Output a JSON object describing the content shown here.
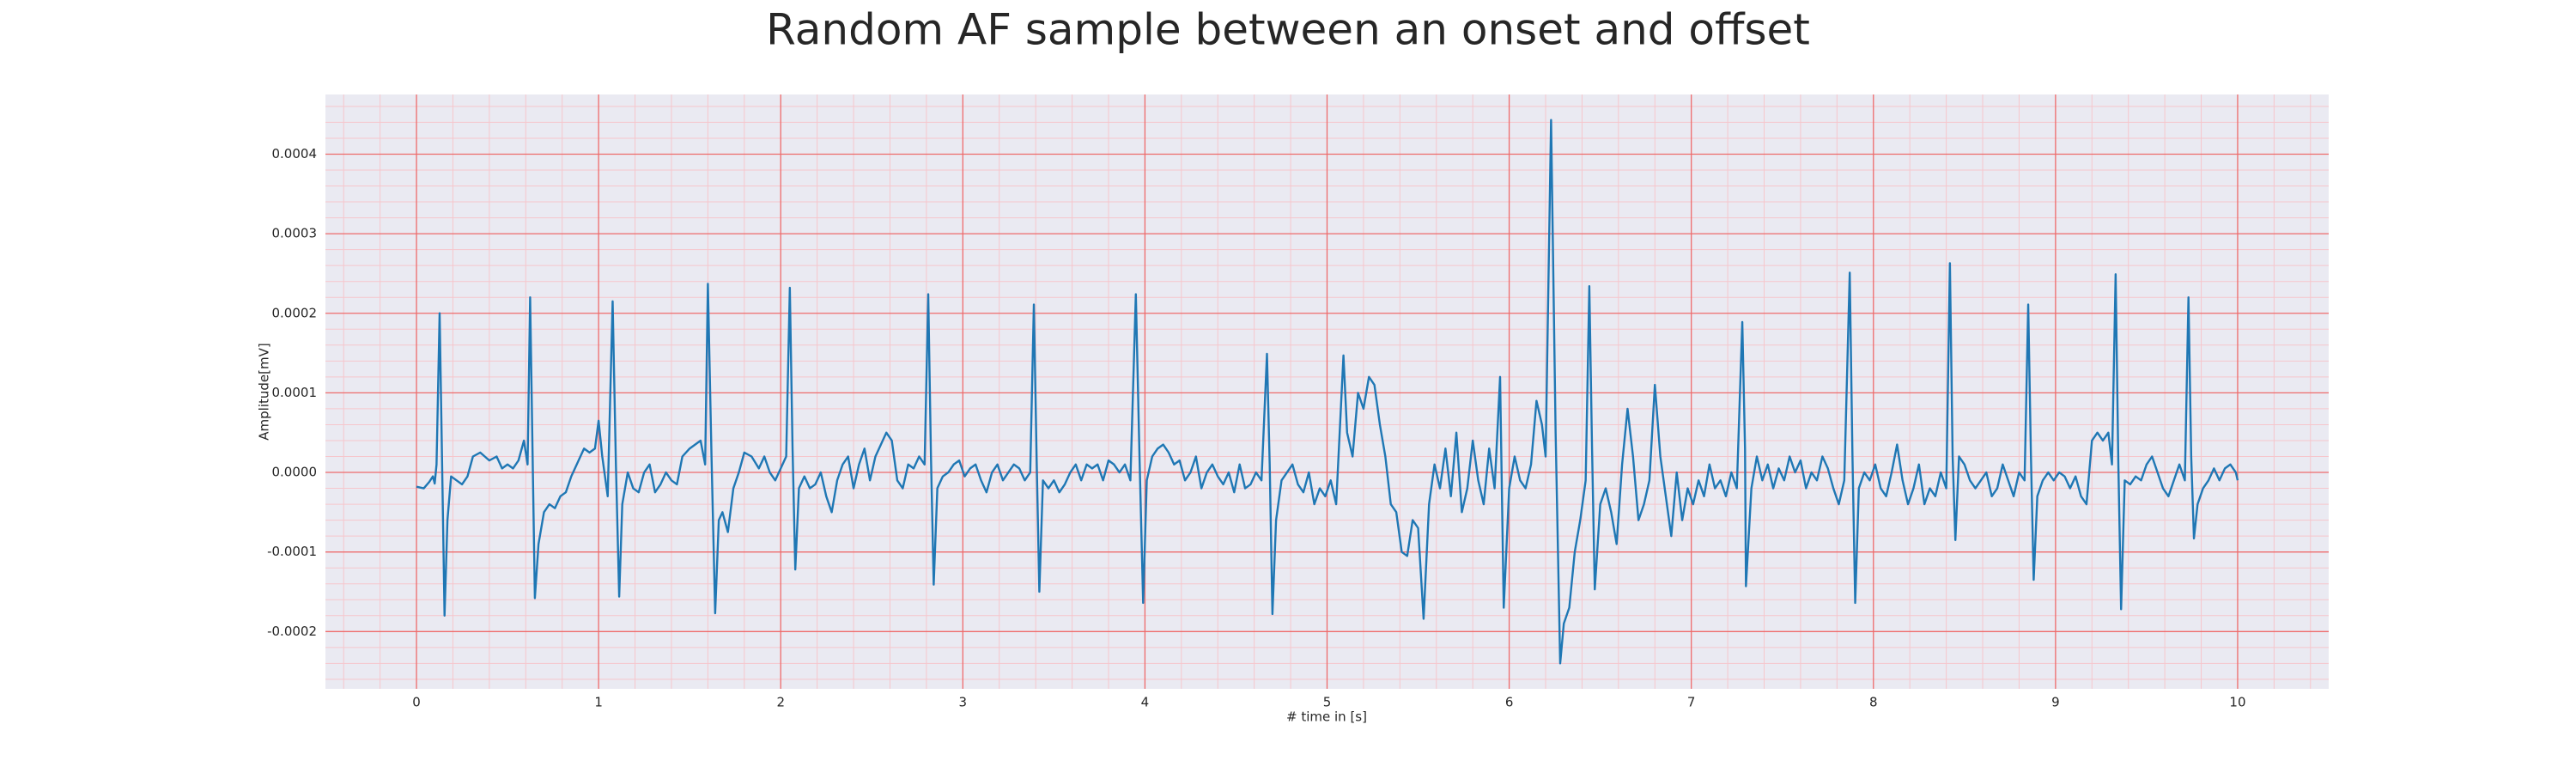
{
  "chart_data": {
    "type": "line",
    "title": "Random AF sample between an onset and offset",
    "xlabel": "# time in [s]",
    "ylabel": "Amplitude[mV]",
    "xlim": [
      -0.5,
      10.5
    ],
    "ylim": [
      -0.000272,
      0.000475
    ],
    "xticks": [
      0,
      1,
      2,
      3,
      4,
      5,
      6,
      7,
      8,
      9,
      10
    ],
    "yticks": [
      -0.0002,
      -0.0001,
      {
        "value": 0,
        "label": "0.0000"
      },
      0.0001,
      0.0002,
      0.0003,
      0.0004
    ],
    "minor_xticks": [
      -0.4,
      -0.2,
      0.2,
      0.4,
      0.6,
      0.8,
      1.2,
      1.4,
      1.6,
      1.8,
      2.2,
      2.4,
      2.6,
      2.8,
      3.2,
      3.4,
      3.6,
      3.8,
      4.2,
      4.4,
      4.6,
      4.8,
      5.2,
      5.4,
      5.6,
      5.8,
      6.2,
      6.4,
      6.6,
      6.8,
      7.2,
      7.4,
      7.6,
      7.8,
      8.2,
      8.4,
      8.6,
      8.8,
      9.2,
      9.4,
      9.6,
      9.8,
      10.2,
      10.4
    ],
    "minor_yticks": [
      -0.00026,
      -0.00024,
      -0.00022,
      -0.00018,
      -0.00016,
      -0.00014,
      -0.00012,
      -8e-05,
      -6e-05,
      -4e-05,
      -2e-05,
      2e-05,
      4e-05,
      6e-05,
      8e-05,
      0.00012,
      0.00014,
      0.00016,
      0.00018,
      0.00022,
      0.00024,
      0.00026,
      0.00028,
      0.00032,
      0.00034,
      0.00036,
      0.00038,
      0.00042,
      0.00044,
      0.00046
    ],
    "grid": true,
    "series": [
      {
        "color": "#1f77b4",
        "x": [
          0.0,
          0.04,
          0.07,
          0.09,
          0.1,
          0.11,
          0.127,
          0.14,
          0.154,
          0.17,
          0.19,
          0.22,
          0.25,
          0.28,
          0.31,
          0.35,
          0.4,
          0.44,
          0.47,
          0.5,
          0.53,
          0.56,
          0.59,
          0.61,
          0.624,
          0.637,
          0.65,
          0.67,
          0.7,
          0.73,
          0.76,
          0.79,
          0.82,
          0.85,
          0.88,
          0.92,
          0.95,
          0.98,
          1.0,
          1.02,
          1.05,
          1.077,
          1.095,
          1.113,
          1.13,
          1.16,
          1.19,
          1.22,
          1.25,
          1.28,
          1.31,
          1.34,
          1.37,
          1.4,
          1.43,
          1.46,
          1.5,
          1.53,
          1.56,
          1.585,
          1.6,
          1.62,
          1.64,
          1.66,
          1.68,
          1.71,
          1.74,
          1.77,
          1.8,
          1.84,
          1.88,
          1.91,
          1.94,
          1.97,
          2.0,
          2.03,
          2.05,
          2.065,
          2.08,
          2.1,
          2.13,
          2.16,
          2.19,
          2.22,
          2.25,
          2.28,
          2.31,
          2.34,
          2.37,
          2.4,
          2.43,
          2.46,
          2.49,
          2.52,
          2.55,
          2.58,
          2.61,
          2.64,
          2.67,
          2.7,
          2.73,
          2.76,
          2.79,
          2.81,
          2.825,
          2.84,
          2.86,
          2.89,
          2.92,
          2.95,
          2.98,
          3.01,
          3.04,
          3.07,
          3.1,
          3.13,
          3.16,
          3.19,
          3.22,
          3.25,
          3.28,
          3.31,
          3.34,
          3.37,
          3.39,
          3.405,
          3.42,
          3.44,
          3.47,
          3.5,
          3.53,
          3.56,
          3.59,
          3.62,
          3.65,
          3.68,
          3.71,
          3.74,
          3.77,
          3.8,
          3.83,
          3.86,
          3.89,
          3.92,
          3.95,
          3.97,
          3.99,
          4.01,
          4.04,
          4.07,
          4.1,
          4.13,
          4.16,
          4.19,
          4.22,
          4.25,
          4.28,
          4.31,
          4.34,
          4.37,
          4.4,
          4.43,
          4.46,
          4.49,
          4.52,
          4.55,
          4.58,
          4.61,
          4.64,
          4.67,
          4.685,
          4.7,
          4.72,
          4.75,
          4.78,
          4.81,
          4.84,
          4.87,
          4.9,
          4.93,
          4.96,
          4.99,
          5.02,
          5.05,
          5.09,
          5.11,
          5.14,
          5.17,
          5.2,
          5.23,
          5.26,
          5.29,
          5.32,
          5.35,
          5.38,
          5.41,
          5.44,
          5.47,
          5.5,
          5.53,
          5.56,
          5.59,
          5.62,
          5.65,
          5.68,
          5.71,
          5.74,
          5.77,
          5.8,
          5.83,
          5.86,
          5.89,
          5.92,
          5.95,
          5.97,
          6.0,
          6.03,
          6.06,
          6.09,
          6.12,
          6.15,
          6.18,
          6.2,
          6.23,
          6.255,
          6.28,
          6.3,
          6.33,
          6.36,
          6.39,
          6.42,
          6.44,
          6.455,
          6.47,
          6.5,
          6.53,
          6.56,
          6.59,
          6.62,
          6.65,
          6.68,
          6.71,
          6.74,
          6.77,
          6.8,
          6.83,
          6.86,
          6.89,
          6.92,
          6.95,
          6.98,
          7.01,
          7.04,
          7.07,
          7.1,
          7.13,
          7.16,
          7.19,
          7.22,
          7.25,
          7.28,
          7.295,
          7.3,
          7.33,
          7.36,
          7.39,
          7.42,
          7.45,
          7.48,
          7.51,
          7.54,
          7.57,
          7.6,
          7.63,
          7.66,
          7.69,
          7.72,
          7.75,
          7.78,
          7.81,
          7.84,
          7.87,
          7.885,
          7.9,
          7.92,
          7.95,
          7.98,
          8.01,
          8.04,
          8.07,
          8.1,
          8.13,
          8.16,
          8.19,
          8.22,
          8.25,
          8.28,
          8.31,
          8.34,
          8.37,
          8.4,
          8.42,
          8.435,
          8.45,
          8.47,
          8.5,
          8.53,
          8.56,
          8.59,
          8.62,
          8.65,
          8.68,
          8.71,
          8.74,
          8.77,
          8.8,
          8.83,
          8.85,
          8.865,
          8.88,
          8.9,
          8.93,
          8.96,
          8.99,
          9.02,
          9.05,
          9.08,
          9.11,
          9.14,
          9.17,
          9.2,
          9.23,
          9.26,
          9.29,
          9.31,
          9.33,
          9.345,
          9.36,
          9.38,
          9.41,
          9.44,
          9.47,
          9.5,
          9.53,
          9.56,
          9.59,
          9.62,
          9.65,
          9.68,
          9.71,
          9.73,
          9.745,
          9.76,
          9.78,
          9.81,
          9.84,
          9.87,
          9.9,
          9.93,
          9.96,
          9.99,
          10.0
        ],
        "values": [
          -1.8e-05,
          -2e-05,
          -1.2e-05,
          -5e-06,
          -1.4e-05,
          1e-05,
          0.0002,
          2e-05,
          -0.00018,
          -6e-05,
          -5e-06,
          -1e-05,
          -1.5e-05,
          -5e-06,
          2e-05,
          2.5e-05,
          1.5e-05,
          2e-05,
          5e-06,
          1e-05,
          5e-06,
          1.5e-05,
          4e-05,
          1e-05,
          0.00022,
          3e-05,
          -0.000158,
          -9e-05,
          -5e-05,
          -4e-05,
          -4.5e-05,
          -3e-05,
          -2.5e-05,
          -5e-06,
          1e-05,
          3e-05,
          2.5e-05,
          3e-05,
          6.5e-05,
          2e-05,
          -3e-05,
          0.000215,
          1e-05,
          -0.000156,
          -4e-05,
          0,
          -2e-05,
          -2.5e-05,
          0,
          1e-05,
          -2.5e-05,
          -1.5e-05,
          0,
          -1e-05,
          -1.5e-05,
          2e-05,
          3e-05,
          3.5e-05,
          4e-05,
          1e-05,
          0.000237,
          2e-05,
          -0.000177,
          -6e-05,
          -5e-05,
          -7.5e-05,
          -2e-05,
          0,
          2.5e-05,
          2e-05,
          5e-06,
          2e-05,
          0,
          -1e-05,
          5e-06,
          2e-05,
          0.000232,
          3e-05,
          -0.000122,
          -2e-05,
          -5e-06,
          -2e-05,
          -1.5e-05,
          0,
          -3e-05,
          -5e-05,
          -1e-05,
          1e-05,
          2e-05,
          -2e-05,
          1e-05,
          3e-05,
          -1e-05,
          2e-05,
          3.5e-05,
          5e-05,
          4e-05,
          -1e-05,
          -2e-05,
          1e-05,
          5e-06,
          2e-05,
          1e-05,
          0.000224,
          2e-05,
          -0.000141,
          -2e-05,
          -5e-06,
          0,
          1e-05,
          1.5e-05,
          -5e-06,
          5e-06,
          1e-05,
          -1e-05,
          -2.5e-05,
          0,
          1e-05,
          -1e-05,
          0,
          1e-05,
          5e-06,
          -1e-05,
          0,
          0.000211,
          2e-05,
          -0.00015,
          -1e-05,
          -2e-05,
          -1e-05,
          -2.5e-05,
          -1.5e-05,
          0,
          1e-05,
          -1e-05,
          1e-05,
          5e-06,
          1e-05,
          -1e-05,
          1.5e-05,
          1e-05,
          0,
          1e-05,
          -1e-05,
          0.000224,
          2e-05,
          -0.000164,
          -1e-05,
          2e-05,
          3e-05,
          3.5e-05,
          2.5e-05,
          1e-05,
          1.5e-05,
          -1e-05,
          0,
          2e-05,
          -2e-05,
          0,
          1e-05,
          -5e-06,
          -1.5e-05,
          0,
          -2.5e-05,
          1e-05,
          -2e-05,
          -1.5e-05,
          0,
          -1e-05,
          0.000149,
          1e-05,
          -0.000178,
          -6e-05,
          -1e-05,
          0,
          1e-05,
          -1.5e-05,
          -2.5e-05,
          0,
          -4e-05,
          -2e-05,
          -3e-05,
          -1e-05,
          -4e-05,
          0.000147,
          5e-05,
          2e-05,
          0.0001,
          8e-05,
          0.00012,
          0.00011,
          6e-05,
          2e-05,
          -4e-05,
          -5e-05,
          -0.0001,
          -0.000105,
          -6e-05,
          -7e-05,
          -0.000184,
          -4e-05,
          1e-05,
          -2e-05,
          3e-05,
          -3e-05,
          5e-05,
          -5e-05,
          -2e-05,
          4e-05,
          -1e-05,
          -4e-05,
          3e-05,
          -2e-05,
          0.00012,
          -0.00017,
          -2e-05,
          2e-05,
          -1e-05,
          -2e-05,
          1e-05,
          9e-05,
          6e-05,
          2e-05,
          0.000443,
          5e-05,
          -0.00024,
          -0.00019,
          -0.00017,
          -0.0001,
          -6e-05,
          -1e-05,
          0.000234,
          3e-05,
          -0.000147,
          -4e-05,
          -2e-05,
          -5e-05,
          -9e-05,
          1e-05,
          8e-05,
          2e-05,
          -6e-05,
          -4e-05,
          -1e-05,
          0.00011,
          2e-05,
          -3e-05,
          -8e-05,
          0,
          -6e-05,
          -2e-05,
          -4e-05,
          -1e-05,
          -3e-05,
          1e-05,
          -2e-05,
          -1e-05,
          -3e-05,
          0,
          -2e-05,
          0.000189,
          3e-05,
          -0.000143,
          -2e-05,
          2e-05,
          -1e-05,
          1e-05,
          -2e-05,
          5e-06,
          -1e-05,
          2e-05,
          0,
          1.5e-05,
          -2e-05,
          0,
          -1e-05,
          2e-05,
          5e-06,
          -2e-05,
          -4e-05,
          -1e-05,
          0.000251,
          2e-05,
          -0.000164,
          -2e-05,
          0,
          -1e-05,
          1e-05,
          -2e-05,
          -3e-05,
          0,
          3.5e-05,
          -1e-05,
          -4e-05,
          -2e-05,
          1e-05,
          -4e-05,
          -2e-05,
          -3e-05,
          0,
          -2e-05,
          0.000263,
          2e-05,
          -8.5e-05,
          2e-05,
          1e-05,
          -1e-05,
          -2e-05,
          -1e-05,
          0,
          -3e-05,
          -2e-05,
          1e-05,
          -1e-05,
          -3e-05,
          0,
          -1e-05,
          0.000211,
          2e-05,
          -0.000135,
          -3e-05,
          -1e-05,
          0,
          -1e-05,
          0,
          -5e-06,
          -2e-05,
          -5e-06,
          -3e-05,
          -4e-05,
          4e-05,
          5e-05,
          4e-05,
          5e-05,
          1e-05,
          0.000249,
          1e-05,
          -0.000172,
          -1e-05,
          -1.5e-05,
          -5e-06,
          -1e-05,
          1e-05,
          2e-05,
          0,
          -2e-05,
          -3e-05,
          -1e-05,
          1e-05,
          -1e-05,
          0.00022,
          2e-05,
          -8.3e-05,
          -4e-05,
          -2e-05,
          -1e-05,
          5e-06,
          -1e-05,
          5e-06,
          1e-05,
          0,
          -1e-05
        ]
      }
    ]
  }
}
